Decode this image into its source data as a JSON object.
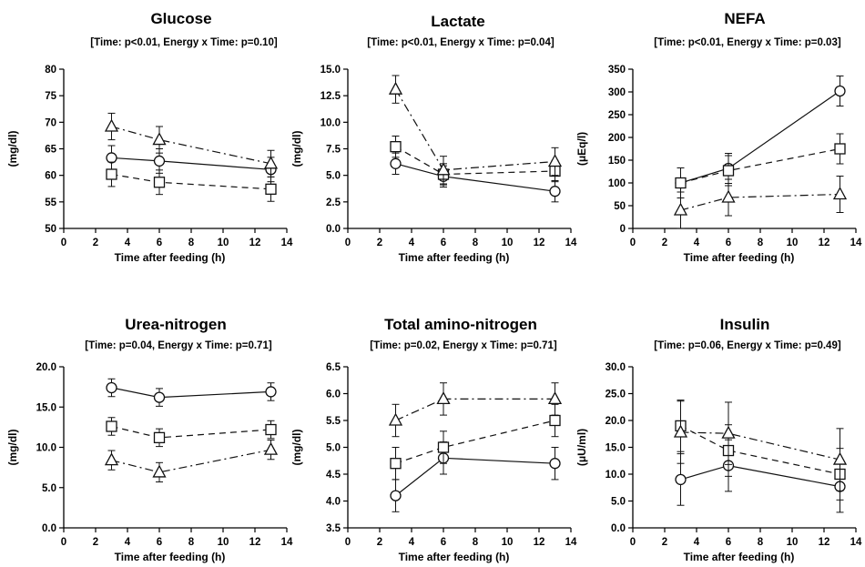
{
  "chart_data": [
    {
      "type": "line",
      "title": "Glucose",
      "subtitle": "[Time: p<0.01, Energy x Time: p=0.10]",
      "xlabel": "Time after feeding (h)",
      "ylabel": "(mg/dl)",
      "xlim": [
        0,
        14
      ],
      "ylim": [
        50,
        80
      ],
      "xticks": [
        "0",
        "2",
        "4",
        "6",
        "8",
        "10",
        "12",
        "14"
      ],
      "yticks": [
        "50",
        "55",
        "60",
        "65",
        "70",
        "75",
        "80"
      ],
      "x": [
        3,
        6,
        13
      ],
      "series": [
        {
          "marker": "circle",
          "dash": "solid",
          "values": [
            63.3,
            62.7,
            61.1
          ],
          "err": [
            2.3,
            2.3,
            2.3
          ]
        },
        {
          "marker": "square",
          "dash": "dashed",
          "values": [
            60.2,
            58.7,
            57.4
          ],
          "err": [
            2.3,
            2.3,
            2.3
          ]
        },
        {
          "marker": "triangle",
          "dash": "dashdot",
          "values": [
            69.2,
            66.7,
            62.2
          ],
          "err": [
            2.5,
            2.5,
            2.5
          ]
        }
      ]
    },
    {
      "type": "line",
      "title": "Lactate",
      "subtitle": "[Time: p<0.01, Energy x Time: p=0.04]",
      "xlabel": "Time after feeding (h)",
      "ylabel": "(mg/dl)",
      "xlim": [
        0,
        14
      ],
      "ylim": [
        0,
        15
      ],
      "xticks": [
        "0",
        "2",
        "4",
        "6",
        "8",
        "10",
        "12",
        "14"
      ],
      "yticks": [
        "0.0",
        "2.5",
        "5.0",
        "7.5",
        "10.0",
        "12.5",
        "15.0"
      ],
      "x": [
        3,
        6,
        13
      ],
      "series": [
        {
          "marker": "circle",
          "dash": "solid",
          "values": [
            6.1,
            4.9,
            3.5
          ],
          "err": [
            1.0,
            1.0,
            1.0
          ]
        },
        {
          "marker": "square",
          "dash": "dashed",
          "values": [
            7.7,
            5.1,
            5.4
          ],
          "err": [
            1.0,
            1.0,
            1.0
          ]
        },
        {
          "marker": "triangle",
          "dash": "dashdot",
          "values": [
            13.1,
            5.5,
            6.3
          ],
          "err": [
            1.3,
            1.3,
            1.3
          ]
        }
      ]
    },
    {
      "type": "line",
      "title": "NEFA",
      "subtitle": "[Time: p<0.01, Energy x Time: p=0.03]",
      "xlabel": "Time after feeding (h)",
      "ylabel": "(μEq/l)",
      "xlim": [
        0,
        14
      ],
      "ylim": [
        0,
        350
      ],
      "xticks": [
        "0",
        "2",
        "4",
        "6",
        "8",
        "10",
        "12",
        "14"
      ],
      "yticks": [
        "0",
        "50",
        "100",
        "150",
        "200",
        "250",
        "300",
        "350"
      ],
      "x": [
        3,
        6,
        13
      ],
      "series": [
        {
          "marker": "circle",
          "dash": "solid",
          "values": [
            100,
            132,
            302
          ],
          "err": [
            33,
            33,
            33
          ]
        },
        {
          "marker": "square",
          "dash": "dashed",
          "values": [
            100,
            127,
            175
          ],
          "err": [
            33,
            33,
            33
          ]
        },
        {
          "marker": "triangle",
          "dash": "dashdot",
          "values": [
            40,
            68,
            75
          ],
          "err": [
            40,
            40,
            40
          ]
        }
      ]
    },
    {
      "type": "line",
      "title": "Urea-nitrogen",
      "subtitle": "[Time: p=0.04, Energy x Time: p=0.71]",
      "xlabel": "Time after feeding (h)",
      "ylabel": "(mg/dl)",
      "xlim": [
        0,
        14
      ],
      "ylim": [
        0,
        20
      ],
      "xticks": [
        "0",
        "2",
        "4",
        "6",
        "8",
        "10",
        "12",
        "14"
      ],
      "yticks": [
        "0.0",
        "5.0",
        "10.0",
        "15.0",
        "20.0"
      ],
      "x": [
        3,
        6,
        13
      ],
      "series": [
        {
          "marker": "circle",
          "dash": "solid",
          "values": [
            17.4,
            16.2,
            16.9
          ],
          "err": [
            1.1,
            1.1,
            1.1
          ]
        },
        {
          "marker": "square",
          "dash": "dashed",
          "values": [
            12.6,
            11.2,
            12.2
          ],
          "err": [
            1.1,
            1.1,
            1.1
          ]
        },
        {
          "marker": "triangle",
          "dash": "dashdot",
          "values": [
            8.4,
            6.9,
            9.7
          ],
          "err": [
            1.2,
            1.2,
            1.2
          ]
        }
      ]
    },
    {
      "type": "line",
      "title": "Total amino-nitrogen",
      "subtitle": "[Time: p=0.02, Energy x Time: p=0.71]",
      "xlabel": "Time after feeding (h)",
      "ylabel": "(mg/dl)",
      "xlim": [
        0,
        14
      ],
      "ylim": [
        3.5,
        6.5
      ],
      "xticks": [
        "0",
        "2",
        "4",
        "6",
        "8",
        "10",
        "12",
        "14"
      ],
      "yticks": [
        "3.5",
        "4.0",
        "4.5",
        "5.0",
        "5.5",
        "6.0",
        "6.5"
      ],
      "x": [
        3,
        6,
        13
      ],
      "series": [
        {
          "marker": "circle",
          "dash": "solid",
          "values": [
            4.1,
            4.8,
            4.7
          ],
          "err": [
            0.3,
            0.3,
            0.3
          ]
        },
        {
          "marker": "square",
          "dash": "dashed",
          "values": [
            4.7,
            5.0,
            5.5
          ],
          "err": [
            0.3,
            0.3,
            0.3
          ]
        },
        {
          "marker": "triangle",
          "dash": "dashdot",
          "values": [
            5.5,
            5.9,
            5.9
          ],
          "err": [
            0.3,
            0.3,
            0.3
          ]
        }
      ]
    },
    {
      "type": "line",
      "title": "Insulin",
      "subtitle": "[Time: p=0.06, Energy x Time: p=0.49]",
      "xlabel": "Time after feeding (h)",
      "ylabel": "(μU/ml)",
      "xlim": [
        0,
        14
      ],
      "ylim": [
        0,
        30
      ],
      "xticks": [
        "0",
        "2",
        "4",
        "6",
        "8",
        "10",
        "12",
        "14"
      ],
      "yticks": [
        "0.0",
        "5.0",
        "10.0",
        "15.0",
        "20.0",
        "25.0",
        "30.0"
      ],
      "x": [
        3,
        6,
        13
      ],
      "series": [
        {
          "marker": "circle",
          "dash": "solid",
          "values": [
            9.0,
            11.6,
            7.7
          ],
          "err": [
            4.8,
            4.8,
            4.8
          ]
        },
        {
          "marker": "square",
          "dash": "dashed",
          "values": [
            19.0,
            14.4,
            10.0
          ],
          "err": [
            4.8,
            4.8,
            4.8
          ]
        },
        {
          "marker": "triangle",
          "dash": "dashdot",
          "values": [
            17.8,
            17.6,
            12.7
          ],
          "err": [
            5.8,
            5.8,
            5.8
          ]
        }
      ]
    }
  ]
}
